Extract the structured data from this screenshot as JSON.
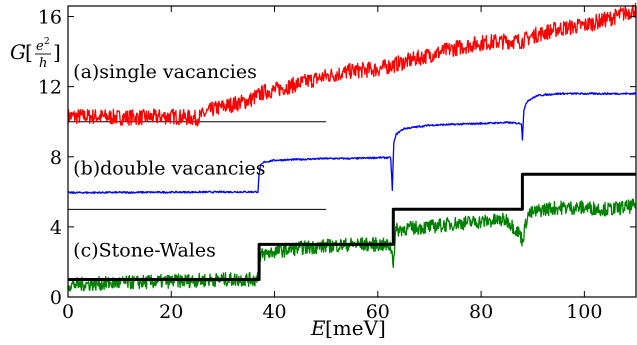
{
  "chart_data": {
    "type": "line",
    "xlabel": {
      "symbol": "E",
      "unit": "[meV]"
    },
    "ylabel": {
      "symbol": "G",
      "open": "[",
      "num_base": "e",
      "num_exp": "2",
      "den": "h",
      "close": "]"
    },
    "xlim": [
      0,
      110
    ],
    "ylim": [
      0,
      16.6
    ],
    "xticks": [
      0,
      20,
      40,
      60,
      80,
      100
    ],
    "yticks": [
      0,
      4,
      8,
      12,
      16
    ],
    "grid": false,
    "annotations": [
      {
        "text": "(a)single vacancies",
        "x": 1,
        "y": 12.5
      },
      {
        "text": "(b)double vacancies",
        "x": 1,
        "y": 7.0
      },
      {
        "text": "(c)Stone-Wales",
        "x": 1,
        "y": 2.3
      }
    ],
    "reference_lines": [
      {
        "y": 10,
        "x": [
          0,
          50
        ],
        "color": "#000000"
      },
      {
        "y": 5,
        "x": [
          0,
          50
        ],
        "color": "#000000"
      }
    ],
    "series": [
      {
        "color": "#ff0000",
        "noise": 0.45,
        "x": [
          0,
          5,
          10,
          15,
          20,
          25,
          28,
          32,
          35,
          38,
          40,
          45,
          50,
          55,
          60,
          65,
          70,
          75,
          80,
          85,
          88,
          90,
          95,
          100,
          105,
          110
        ],
        "y": [
          10.3,
          10.3,
          10.25,
          10.25,
          10.3,
          10.2,
          10.7,
          11.0,
          11.2,
          11.7,
          11.8,
          12.2,
          12.6,
          12.9,
          13.0,
          13.4,
          13.8,
          14.2,
          14.5,
          14.6,
          14.6,
          14.9,
          15.3,
          15.5,
          15.9,
          16.4
        ]
      },
      {
        "color": "#0000ff",
        "noise": 0.05,
        "x": [
          0,
          36.8,
          37.0,
          37.3,
          38,
          40,
          45,
          50,
          55,
          60,
          62.5,
          62.8,
          63.1,
          63.6,
          65,
          70,
          75,
          80,
          85,
          87.8,
          88.0,
          88.3,
          89,
          91,
          95,
          100,
          105,
          110
        ],
        "y": [
          5.95,
          6.0,
          7.0,
          7.5,
          7.7,
          7.8,
          7.85,
          7.9,
          7.9,
          7.95,
          7.95,
          6.1,
          8.8,
          9.3,
          9.6,
          9.8,
          9.85,
          9.9,
          9.95,
          9.9,
          9.0,
          10.7,
          11.2,
          11.5,
          11.6,
          11.6,
          11.6,
          11.6
        ]
      },
      {
        "color": "#008000",
        "noise": 0.4,
        "x": [
          0,
          10,
          20,
          30,
          36.5,
          37.5,
          40,
          45,
          50,
          55,
          60,
          62.5,
          63.0,
          63.5,
          65,
          70,
          75,
          80,
          85,
          87.5,
          88.0,
          89,
          92,
          95,
          100,
          105,
          110
        ],
        "y": [
          0.7,
          0.8,
          0.9,
          1.0,
          1.0,
          2.4,
          2.6,
          2.8,
          2.9,
          3.0,
          3.0,
          2.9,
          2.0,
          3.8,
          3.9,
          4.0,
          4.2,
          4.3,
          4.4,
          3.6,
          3.2,
          4.7,
          5.0,
          5.1,
          5.1,
          5.0,
          5.2
        ]
      },
      {
        "color": "#000000",
        "noise": 0,
        "step": true,
        "x": [
          0,
          37,
          37,
          63,
          63,
          88,
          88,
          110
        ],
        "y": [
          1,
          1,
          3,
          3,
          5,
          5,
          7,
          7
        ]
      }
    ]
  }
}
